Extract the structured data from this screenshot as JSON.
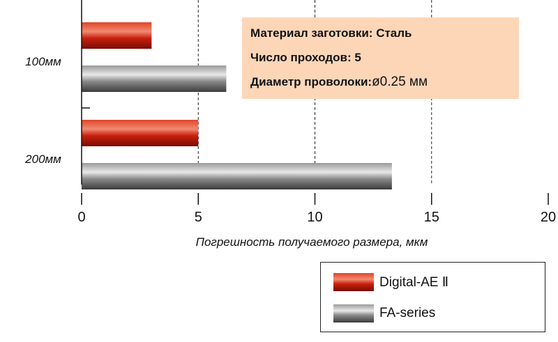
{
  "chart_data": {
    "type": "bar",
    "orientation": "horizontal",
    "categories": [
      "100мм",
      "200мм"
    ],
    "series": [
      {
        "name": "Digital-AE Ⅱ",
        "values": [
          3.0,
          5.0
        ]
      },
      {
        "name": "FA-series",
        "values": [
          6.2,
          13.3
        ]
      }
    ],
    "xlabel": "Погрешность получаемого размера, мкм",
    "xlim": [
      0,
      20
    ],
    "xticks": [
      0,
      5,
      10,
      15,
      20
    ],
    "grid": "vertical-dashed",
    "legend_position": "bottom-right",
    "colors": {
      "Digital-AE Ⅱ": "#c8200e",
      "FA-series": "#8a8a8a"
    }
  },
  "info": {
    "material": "Материал заготовки: Сталь",
    "passes": "Число проходов: 5",
    "diameter_prefix": "Диаметр проволоки:",
    "diameter_value": "ø0.25 мм"
  },
  "legend": {
    "items": [
      "Digital-AE Ⅱ",
      "FA-series"
    ]
  }
}
